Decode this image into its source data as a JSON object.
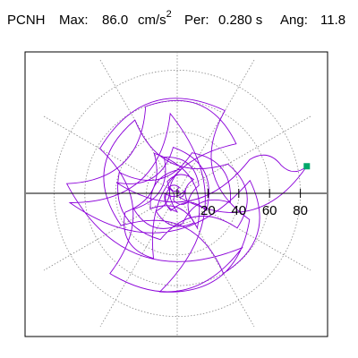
{
  "header": {
    "station": "PCNH",
    "max_label": "Max:",
    "max_value": "86.0",
    "max_unit": "cm/s",
    "max_unit_exp": "2",
    "per_label": "Per:",
    "per_value": "0.280 s",
    "ang_label": "Ang:",
    "ang_value": "11.8"
  },
  "colors": {
    "trace": "#8B00D9",
    "marker": "#00A86B",
    "grid": "#888888",
    "axis": "#000000"
  },
  "chart_data": {
    "type": "polar-trajectory",
    "title": "",
    "radial_ticks": [
      20,
      40,
      60,
      80
    ],
    "radial_tick_labels": [
      "20",
      "40",
      "60",
      "80"
    ],
    "rmax": 100,
    "grid": true,
    "angular_grid_step_deg": 30,
    "peak": {
      "r": 86.0,
      "angle_deg": 11.8
    },
    "trajectory": [
      [
        0,
        0
      ],
      [
        4,
        70
      ],
      [
        7,
        150
      ],
      [
        5,
        240
      ],
      [
        9,
        320
      ],
      [
        14,
        40
      ],
      [
        10,
        130
      ],
      [
        18,
        220
      ],
      [
        22,
        300
      ],
      [
        15,
        20
      ],
      [
        25,
        110
      ],
      [
        30,
        200
      ],
      [
        20,
        280
      ],
      [
        35,
        350
      ],
      [
        28,
        70
      ],
      [
        40,
        160
      ],
      [
        32,
        250
      ],
      [
        45,
        330
      ],
      [
        38,
        30
      ],
      [
        55,
        120
      ],
      [
        42,
        210
      ],
      [
        60,
        300
      ],
      [
        48,
        10
      ],
      [
        70,
        185
      ],
      [
        52,
        95
      ],
      [
        65,
        260
      ],
      [
        50,
        340
      ],
      [
        62,
        60
      ],
      [
        58,
        150
      ],
      [
        68,
        230
      ],
      [
        55,
        320
      ],
      [
        72,
        175
      ],
      [
        60,
        110
      ],
      [
        50,
        40
      ],
      [
        45,
        250
      ],
      [
        36,
        200
      ],
      [
        30,
        120
      ],
      [
        26,
        300
      ],
      [
        20,
        210
      ],
      [
        16,
        80
      ],
      [
        12,
        270
      ],
      [
        8,
        180
      ],
      [
        5,
        20
      ],
      [
        3,
        300
      ],
      [
        86,
        11.8
      ],
      [
        70,
        15
      ],
      [
        52,
        25
      ],
      [
        40,
        170
      ],
      [
        30,
        95
      ],
      [
        22,
        330
      ],
      [
        12,
        250
      ],
      [
        6,
        140
      ],
      [
        2,
        60
      ],
      [
        0,
        0
      ]
    ]
  }
}
